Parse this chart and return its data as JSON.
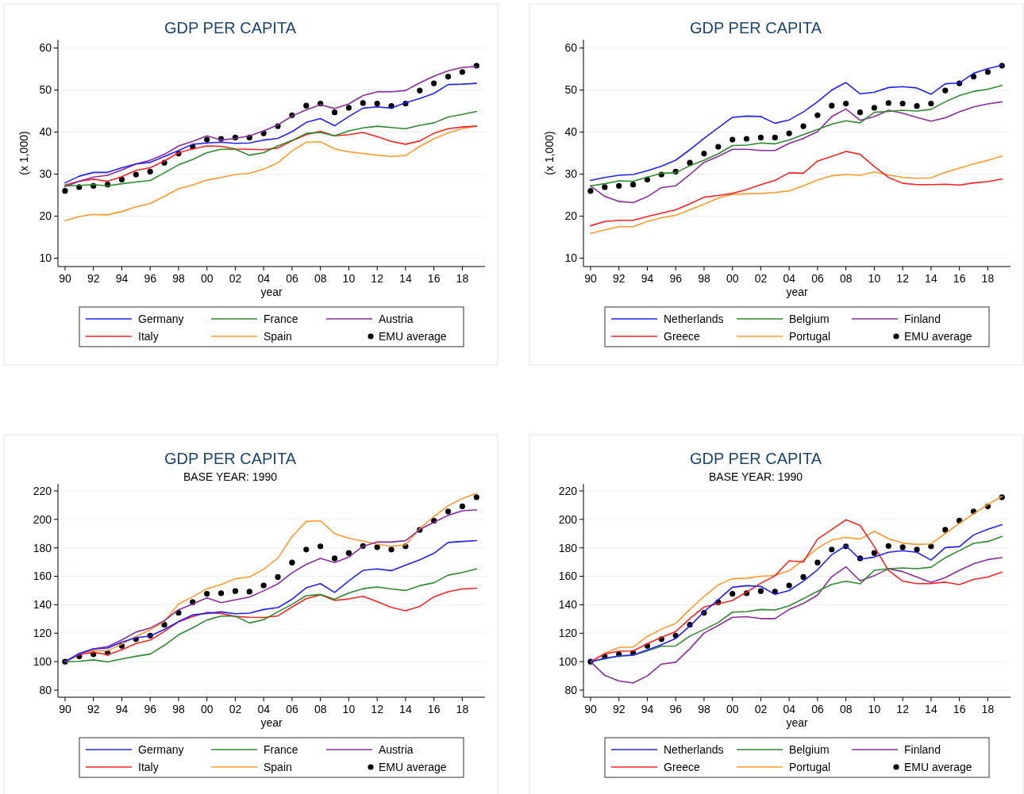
{
  "chart_data": [
    {
      "type": "line",
      "title": "GDP PER CAPITA",
      "xlabel": "year",
      "ylabel": "(x 1,000)",
      "x": [
        1990,
        1991,
        1992,
        1993,
        1994,
        1995,
        1996,
        1997,
        1998,
        1999,
        2000,
        2001,
        2002,
        2003,
        2004,
        2005,
        2006,
        2007,
        2008,
        2009,
        2010,
        2011,
        2012,
        2013,
        2014,
        2015,
        2016,
        2017,
        2018,
        2019
      ],
      "xlim": [
        1989.5,
        2019.6
      ],
      "xticks": [
        {
          "value": 1990,
          "label": "90"
        },
        {
          "value": 1992,
          "label": "92"
        },
        {
          "value": 1994,
          "label": "94"
        },
        {
          "value": 1996,
          "label": "96"
        },
        {
          "value": 1998,
          "label": "98"
        },
        {
          "value": 2000,
          "label": "00"
        },
        {
          "value": 2002,
          "label": "02"
        },
        {
          "value": 2004,
          "label": "04"
        },
        {
          "value": 2006,
          "label": "06"
        },
        {
          "value": 2008,
          "label": "08"
        },
        {
          "value": 2010,
          "label": "10"
        },
        {
          "value": 2012,
          "label": "12"
        },
        {
          "value": 2014,
          "label": "14"
        },
        {
          "value": 2016,
          "label": "16"
        },
        {
          "value": 2018,
          "label": "18"
        }
      ],
      "ylim": [
        8,
        62
      ],
      "yticks": [
        10,
        20,
        30,
        40,
        50,
        60
      ],
      "grid": "y",
      "legend": "bottom",
      "series": [
        {
          "name": "Germany",
          "color": "#2020ff",
          "values": [
            27.9,
            29.5,
            30.4,
            30.4,
            31.5,
            32.4,
            32.8,
            34.2,
            35.6,
            37.1,
            37.4,
            37.6,
            37.3,
            37.4,
            38.1,
            38.5,
            40.1,
            42.3,
            43.2,
            41.5,
            43.7,
            45.7,
            46.0,
            45.7,
            47.0,
            48.0,
            49.2,
            51.3,
            51.4,
            51.6
          ]
        },
        {
          "name": "France",
          "color": "#2a8c2a",
          "values": [
            27.2,
            27.3,
            27.5,
            27.2,
            27.7,
            28.1,
            28.5,
            30.3,
            32.2,
            33.5,
            35.1,
            35.9,
            35.9,
            34.5,
            35.1,
            36.7,
            38.0,
            39.7,
            39.9,
            39.1,
            40.3,
            41.0,
            41.4,
            41.1,
            40.8,
            41.6,
            42.2,
            43.6,
            44.2,
            44.9
          ]
        },
        {
          "name": "Austria",
          "color": "#8b2c9c",
          "values": [
            27.0,
            28.3,
            29.3,
            29.7,
            31.0,
            32.4,
            33.3,
            34.7,
            36.7,
            37.8,
            39.1,
            38.1,
            38.5,
            39.1,
            40.3,
            41.7,
            43.8,
            45.3,
            46.5,
            45.6,
            46.7,
            48.7,
            49.6,
            49.6,
            49.9,
            51.7,
            53.3,
            54.6,
            55.4,
            55.6
          ]
        },
        {
          "name": "Italy",
          "color": "#ff2020",
          "values": [
            27.4,
            28.3,
            28.8,
            28.3,
            29.4,
            30.9,
            31.5,
            33.1,
            35.1,
            36.0,
            36.7,
            36.6,
            36.0,
            35.9,
            35.8,
            36.2,
            37.9,
            39.4,
            40.2,
            39.1,
            39.4,
            39.9,
            38.9,
            37.8,
            37.1,
            37.9,
            39.7,
            40.8,
            41.2,
            41.4
          ]
        },
        {
          "name": "Spain",
          "color": "#ff9a2a",
          "values": [
            18.9,
            19.9,
            20.4,
            20.3,
            21.1,
            22.2,
            23.0,
            24.7,
            26.5,
            27.4,
            28.6,
            29.2,
            29.9,
            30.2,
            31.2,
            32.7,
            35.5,
            37.6,
            37.7,
            36.0,
            35.3,
            34.9,
            34.5,
            34.2,
            34.4,
            36.6,
            38.4,
            39.8,
            40.8,
            41.5
          ]
        },
        {
          "name": "EMU average",
          "type": "scatter",
          "marker": "circle",
          "color": "#000000",
          "values": [
            26.0,
            26.9,
            27.2,
            27.5,
            28.7,
            29.9,
            30.6,
            32.7,
            34.9,
            36.5,
            38.2,
            38.4,
            38.7,
            38.7,
            39.7,
            41.4,
            44.0,
            46.3,
            46.8,
            44.7,
            45.8,
            46.9,
            46.8,
            46.2,
            46.8,
            49.9,
            51.6,
            53.2,
            54.3,
            55.8
          ]
        }
      ]
    },
    {
      "type": "line",
      "title": "GDP PER CAPITA",
      "xlabel": "year",
      "ylabel": "(x 1,000)",
      "x": [
        1990,
        1991,
        1992,
        1993,
        1994,
        1995,
        1996,
        1997,
        1998,
        1999,
        2000,
        2001,
        2002,
        2003,
        2004,
        2005,
        2006,
        2007,
        2008,
        2009,
        2010,
        2011,
        2012,
        2013,
        2014,
        2015,
        2016,
        2017,
        2018,
        2019
      ],
      "xlim": [
        1989.5,
        2019.6
      ],
      "xticks": [
        {
          "value": 1990,
          "label": "90"
        },
        {
          "value": 1992,
          "label": "92"
        },
        {
          "value": 1994,
          "label": "94"
        },
        {
          "value": 1996,
          "label": "96"
        },
        {
          "value": 1998,
          "label": "98"
        },
        {
          "value": 2000,
          "label": "00"
        },
        {
          "value": 2002,
          "label": "02"
        },
        {
          "value": 2004,
          "label": "04"
        },
        {
          "value": 2006,
          "label": "06"
        },
        {
          "value": 2008,
          "label": "08"
        },
        {
          "value": 2010,
          "label": "10"
        },
        {
          "value": 2012,
          "label": "12"
        },
        {
          "value": 2014,
          "label": "14"
        },
        {
          "value": 2016,
          "label": "16"
        },
        {
          "value": 2018,
          "label": "18"
        }
      ],
      "ylim": [
        8,
        62
      ],
      "yticks": [
        10,
        20,
        30,
        40,
        50,
        60
      ],
      "grid": "y",
      "legend": "bottom",
      "series": [
        {
          "name": "Netherlands",
          "color": "#2020ff",
          "values": [
            28.5,
            29.2,
            29.7,
            29.9,
            30.8,
            31.9,
            33.3,
            35.8,
            38.5,
            41.0,
            43.5,
            43.8,
            43.7,
            42.1,
            42.9,
            44.8,
            47.2,
            50.0,
            51.8,
            49.1,
            49.5,
            50.6,
            50.8,
            50.5,
            49.0,
            51.5,
            51.7,
            54.0,
            55.1,
            55.9
          ]
        },
        {
          "name": "Belgium",
          "color": "#2a8c2a",
          "values": [
            27.2,
            27.7,
            28.4,
            28.3,
            29.3,
            30.2,
            30.3,
            32.0,
            33.3,
            34.8,
            36.8,
            36.9,
            37.4,
            37.2,
            38.1,
            39.4,
            40.6,
            41.9,
            42.7,
            42.2,
            44.7,
            44.9,
            45.2,
            45.0,
            45.4,
            47.2,
            48.7,
            49.7,
            50.2,
            51.1
          ]
        },
        {
          "name": "Finland",
          "color": "#8b2c9c",
          "values": [
            27.2,
            24.7,
            23.5,
            23.2,
            24.6,
            26.8,
            27.2,
            29.9,
            32.8,
            34.2,
            35.9,
            35.9,
            35.6,
            35.6,
            37.3,
            38.5,
            40.1,
            43.7,
            45.5,
            42.8,
            43.7,
            45.2,
            44.5,
            43.5,
            42.6,
            43.4,
            44.8,
            46.0,
            46.7,
            47.2
          ]
        },
        {
          "name": "Greece",
          "color": "#ff2020",
          "values": [
            17.7,
            18.7,
            19.0,
            19.0,
            19.9,
            20.7,
            21.5,
            22.9,
            24.5,
            24.9,
            25.4,
            26.3,
            27.5,
            28.5,
            30.3,
            30.2,
            33.1,
            34.2,
            35.4,
            34.7,
            31.8,
            29.2,
            27.8,
            27.5,
            27.5,
            27.6,
            27.4,
            27.9,
            28.2,
            28.8
          ]
        },
        {
          "name": "Portugal",
          "color": "#ff9a2a",
          "values": [
            15.9,
            16.7,
            17.5,
            17.5,
            18.7,
            19.6,
            20.2,
            21.5,
            22.8,
            24.3,
            25.2,
            25.3,
            25.4,
            25.6,
            26.0,
            27.2,
            28.6,
            29.6,
            29.9,
            29.7,
            30.5,
            29.8,
            29.2,
            29.0,
            29.1,
            30.4,
            31.4,
            32.4,
            33.3,
            34.3
          ]
        },
        {
          "name": "EMU average",
          "type": "scatter",
          "marker": "circle",
          "color": "#000000",
          "values": [
            26.0,
            26.9,
            27.2,
            27.5,
            28.7,
            29.9,
            30.6,
            32.7,
            34.9,
            36.5,
            38.2,
            38.4,
            38.7,
            38.7,
            39.7,
            41.4,
            44.0,
            46.3,
            46.8,
            44.7,
            45.8,
            46.9,
            46.8,
            46.2,
            46.8,
            49.9,
            51.6,
            53.2,
            54.3,
            55.8
          ]
        }
      ]
    },
    {
      "type": "line",
      "title": "GDP PER CAPITA",
      "subtitle": "BASE YEAR: 1990",
      "xlabel": "year",
      "x": [
        1990,
        1991,
        1992,
        1993,
        1994,
        1995,
        1996,
        1997,
        1998,
        1999,
        2000,
        2001,
        2002,
        2003,
        2004,
        2005,
        2006,
        2007,
        2008,
        2009,
        2010,
        2011,
        2012,
        2013,
        2014,
        2015,
        2016,
        2017,
        2018,
        2019
      ],
      "xlim": [
        1989.5,
        2019.6
      ],
      "xticks": [
        {
          "value": 1990,
          "label": "90"
        },
        {
          "value": 1992,
          "label": "92"
        },
        {
          "value": 1994,
          "label": "94"
        },
        {
          "value": 1996,
          "label": "96"
        },
        {
          "value": 1998,
          "label": "98"
        },
        {
          "value": 2000,
          "label": "00"
        },
        {
          "value": 2002,
          "label": "02"
        },
        {
          "value": 2004,
          "label": "04"
        },
        {
          "value": 2006,
          "label": "06"
        },
        {
          "value": 2008,
          "label": "08"
        },
        {
          "value": 2010,
          "label": "10"
        },
        {
          "value": 2012,
          "label": "12"
        },
        {
          "value": 2014,
          "label": "14"
        },
        {
          "value": 2016,
          "label": "16"
        },
        {
          "value": 2018,
          "label": "18"
        }
      ],
      "ylim": [
        75,
        225
      ],
      "yticks": [
        80,
        100,
        120,
        140,
        160,
        180,
        200,
        220
      ],
      "grid": "y",
      "legend": "bottom",
      "series": [
        {
          "name": "Germany",
          "color": "#2020ff",
          "values": [
            100,
            105.8,
            109.0,
            109.6,
            113.8,
            116.8,
            118.1,
            122.7,
            128.2,
            132.9,
            133.9,
            135.0,
            133.7,
            134.1,
            136.7,
            138.0,
            143.9,
            151.9,
            154.9,
            148.7,
            156.8,
            164.2,
            165.2,
            164.0,
            167.8,
            171.6,
            176.2,
            183.8,
            184.5,
            185.1
          ]
        },
        {
          "name": "France",
          "color": "#2a8c2a",
          "values": [
            100,
            100.2,
            101.3,
            99.8,
            101.9,
            103.8,
            105.3,
            111.5,
            118.9,
            123.8,
            129.3,
            132.0,
            132.0,
            127.2,
            129.5,
            135.0,
            140.3,
            146.4,
            147.3,
            143.9,
            148.3,
            151.3,
            152.5,
            151.1,
            150.0,
            153.4,
            155.5,
            160.8,
            162.7,
            165.2
          ]
        },
        {
          "name": "Austria",
          "color": "#8b2c9c",
          "values": [
            100,
            105.4,
            109.0,
            110.5,
            115.3,
            120.8,
            123.6,
            128.9,
            136.5,
            140.5,
            144.9,
            141.5,
            143.4,
            145.4,
            149.8,
            154.7,
            162.5,
            168.4,
            172.6,
            169.7,
            173.5,
            181.1,
            184.1,
            184.1,
            185.1,
            192.9,
            198.0,
            202.9,
            206.0,
            206.7
          ]
        },
        {
          "name": "Italy",
          "color": "#ff2020",
          "values": [
            100,
            105.0,
            106.7,
            104.8,
            108.3,
            112.8,
            115.1,
            121.2,
            128.0,
            131.8,
            134.6,
            133.9,
            131.8,
            131.2,
            131.0,
            132.2,
            138.4,
            144.3,
            147.0,
            143.0,
            144.1,
            146.0,
            142.2,
            138.2,
            135.8,
            138.8,
            145.6,
            149.2,
            151.1,
            151.7
          ]
        },
        {
          "name": "Spain",
          "color": "#ff9a2a",
          "values": [
            100,
            105.4,
            108.0,
            107.7,
            112.4,
            117.7,
            122.3,
            128.2,
            140.5,
            145.6,
            151.3,
            154.2,
            158.3,
            159.5,
            165.0,
            172.8,
            187.9,
            198.6,
            199.1,
            190.0,
            186.8,
            184.7,
            182.6,
            181.1,
            182.1,
            193.6,
            202.0,
            209.6,
            214.7,
            218.3
          ]
        },
        {
          "name": "EMU average",
          "type": "scatter",
          "marker": "circle",
          "color": "#000000",
          "values": [
            100,
            103.7,
            105.2,
            106.2,
            111.1,
            115.8,
            118.3,
            125.9,
            134.4,
            141.8,
            147.7,
            148.1,
            149.6,
            149.2,
            153.6,
            159.5,
            169.7,
            178.8,
            181.1,
            172.6,
            176.4,
            181.3,
            180.5,
            178.8,
            181.1,
            192.7,
            199.1,
            205.6,
            209.2,
            215.6
          ]
        }
      ]
    },
    {
      "type": "line",
      "title": "GDP PER CAPITA",
      "subtitle": "BASE YEAR: 1990",
      "xlabel": "year",
      "x": [
        1990,
        1991,
        1992,
        1993,
        1994,
        1995,
        1996,
        1997,
        1998,
        1999,
        2000,
        2001,
        2002,
        2003,
        2004,
        2005,
        2006,
        2007,
        2008,
        2009,
        2010,
        2011,
        2012,
        2013,
        2014,
        2015,
        2016,
        2017,
        2018,
        2019
      ],
      "xlim": [
        1989.5,
        2019.6
      ],
      "xticks": [
        {
          "value": 1990,
          "label": "90"
        },
        {
          "value": 1992,
          "label": "92"
        },
        {
          "value": 1994,
          "label": "94"
        },
        {
          "value": 1996,
          "label": "96"
        },
        {
          "value": 1998,
          "label": "98"
        },
        {
          "value": 2000,
          "label": "00"
        },
        {
          "value": 2002,
          "label": "02"
        },
        {
          "value": 2004,
          "label": "04"
        },
        {
          "value": 2006,
          "label": "06"
        },
        {
          "value": 2008,
          "label": "08"
        },
        {
          "value": 2010,
          "label": "10"
        },
        {
          "value": 2012,
          "label": "12"
        },
        {
          "value": 2014,
          "label": "14"
        },
        {
          "value": 2016,
          "label": "16"
        },
        {
          "value": 2018,
          "label": "18"
        }
      ],
      "ylim": [
        75,
        225
      ],
      "yticks": [
        80,
        100,
        120,
        140,
        160,
        180,
        200,
        220
      ],
      "grid": "y",
      "legend": "bottom",
      "series": [
        {
          "name": "Netherlands",
          "color": "#2020ff",
          "values": [
            100,
            102.3,
            104.0,
            104.7,
            108.2,
            112.0,
            116.3,
            125.1,
            135.1,
            143.5,
            152.3,
            153.4,
            152.9,
            147.3,
            150.0,
            156.6,
            164.6,
            175.2,
            181.5,
            172.0,
            173.5,
            176.9,
            178.0,
            176.9,
            171.4,
            180.2,
            180.9,
            189.1,
            193.1,
            196.3
          ]
        },
        {
          "name": "Belgium",
          "color": "#2a8c2a",
          "values": [
            100,
            102.1,
            104.0,
            104.5,
            107.6,
            110.8,
            111.0,
            118.0,
            122.6,
            127.5,
            134.8,
            135.2,
            136.7,
            136.3,
            139.3,
            144.3,
            149.4,
            154.3,
            156.6,
            154.7,
            164.2,
            165.3,
            165.9,
            165.3,
            166.4,
            173.1,
            178.1,
            183.2,
            184.5,
            188.1
          ]
        },
        {
          "name": "Finland",
          "color": "#8b2c9c",
          "values": [
            100,
            90.4,
            86.4,
            85.0,
            90.0,
            98.3,
            99.6,
            109.1,
            120.1,
            125.5,
            131.2,
            131.6,
            130.3,
            130.3,
            136.7,
            140.9,
            146.8,
            159.7,
            166.7,
            156.8,
            160.4,
            165.4,
            163.3,
            159.5,
            155.7,
            159.1,
            164.2,
            168.8,
            171.8,
            173.1
          ]
        },
        {
          "name": "Greece",
          "color": "#ff2020",
          "values": [
            100,
            105.5,
            107.3,
            107.5,
            112.6,
            117.1,
            121.1,
            130.3,
            138.4,
            140.7,
            143.0,
            148.9,
            155.1,
            160.4,
            170.9,
            170.1,
            186.2,
            192.9,
            199.7,
            195.9,
            180.9,
            164.2,
            156.6,
            154.9,
            154.9,
            155.9,
            154.2,
            157.8,
            159.5,
            162.9
          ]
        },
        {
          "name": "Portugal",
          "color": "#ff9a2a",
          "values": [
            100,
            105.9,
            110.0,
            110.3,
            117.7,
            122.9,
            126.9,
            136.7,
            145.8,
            154.0,
            158.3,
            158.7,
            160.0,
            160.6,
            164.0,
            171.4,
            179.8,
            185.5,
            187.4,
            186.2,
            191.7,
            186.4,
            183.4,
            182.4,
            182.8,
            190.0,
            197.2,
            203.9,
            210.5,
            216.2
          ]
        },
        {
          "name": "EMU average",
          "type": "scatter",
          "marker": "circle",
          "color": "#000000",
          "values": [
            100,
            103.7,
            105.2,
            106.2,
            111.1,
            115.8,
            118.3,
            125.9,
            134.4,
            141.8,
            147.7,
            148.1,
            149.6,
            149.2,
            153.6,
            159.5,
            169.7,
            178.8,
            181.1,
            172.6,
            176.4,
            181.3,
            180.5,
            178.8,
            181.1,
            192.7,
            199.1,
            205.6,
            209.2,
            215.6
          ]
        }
      ]
    }
  ]
}
